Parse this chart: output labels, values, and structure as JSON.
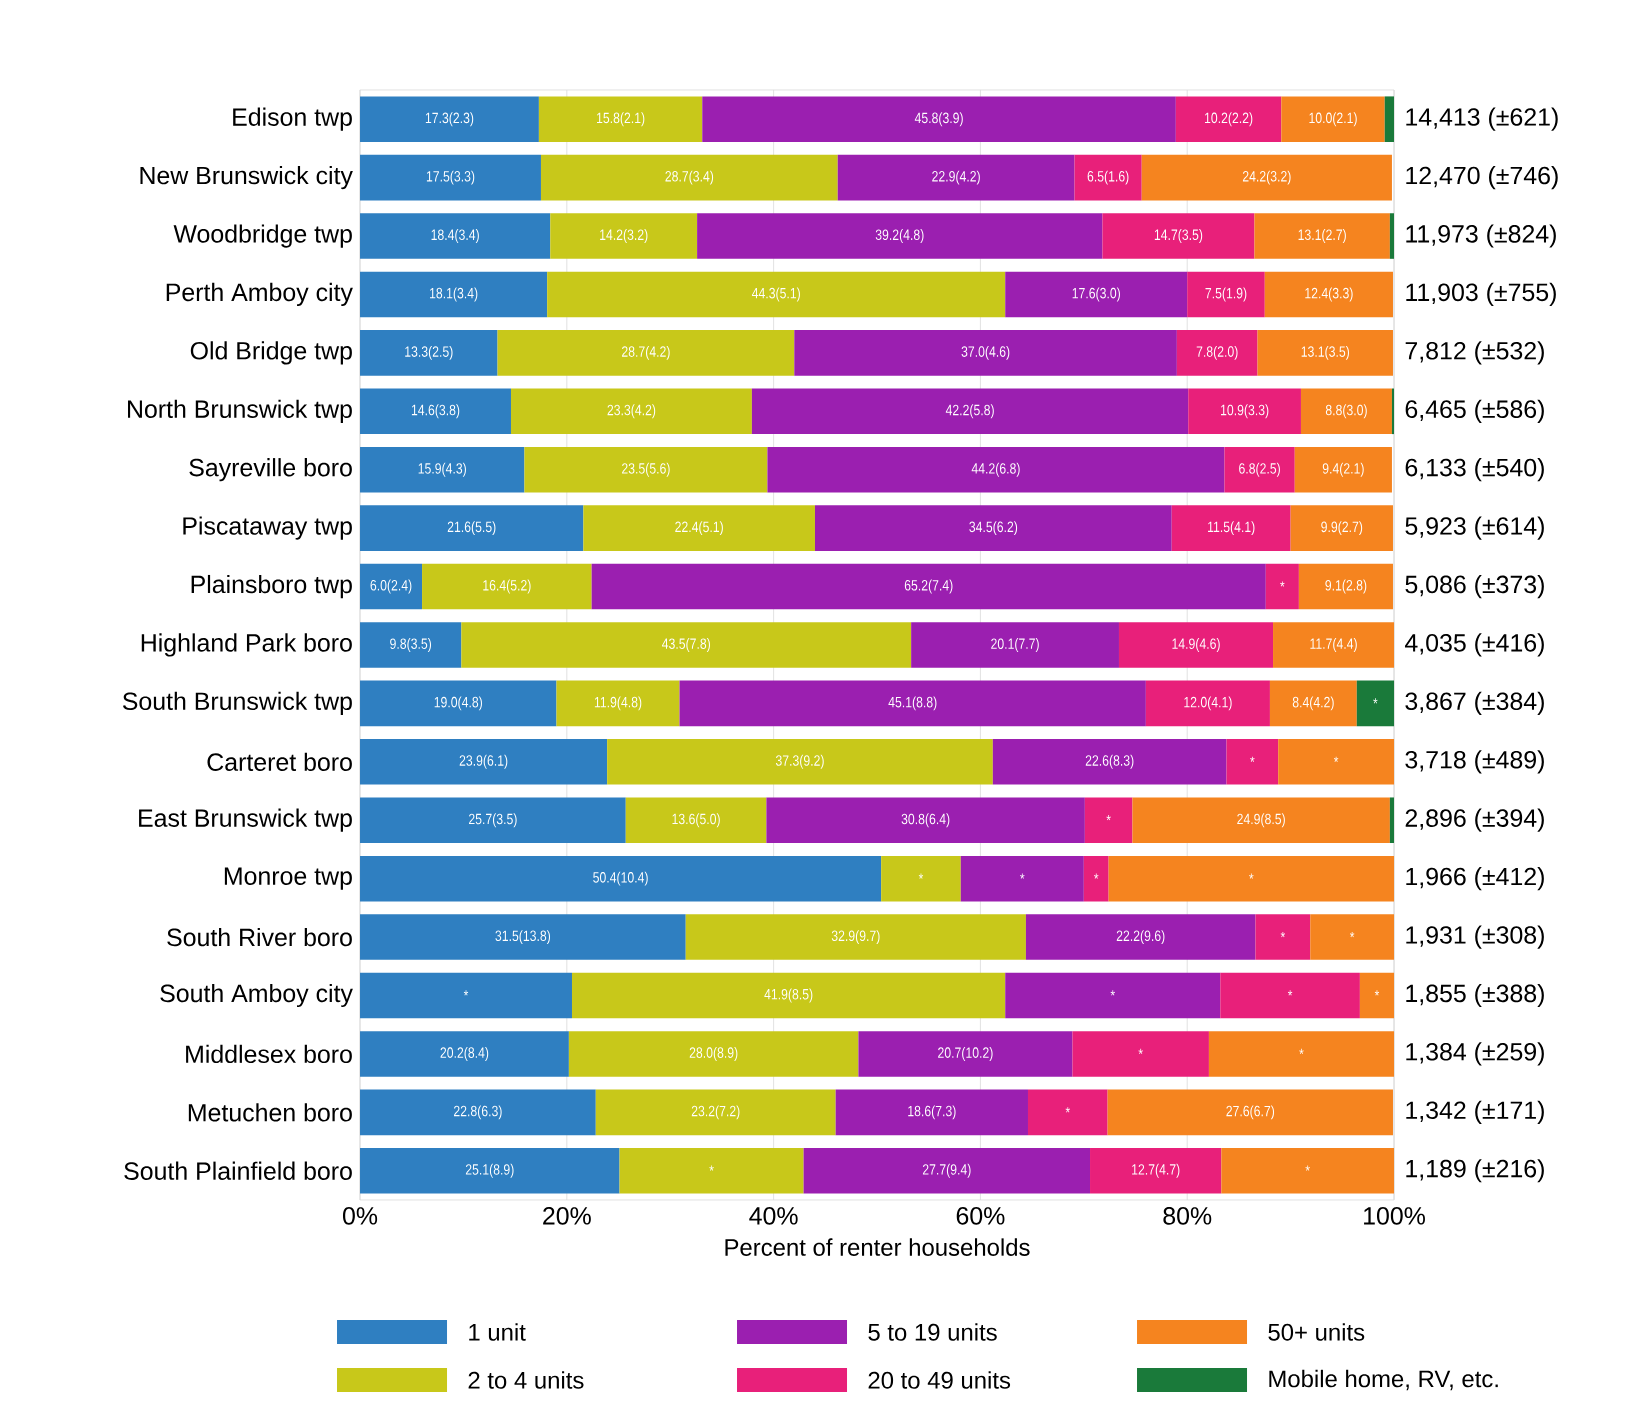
{
  "chart_data": {
    "type": "bar",
    "orientation": "horizontal",
    "stacked": true,
    "xlabel": "Percent of renter households",
    "categories": [
      "Edison twp",
      "New Brunswick city",
      "Woodbridge twp",
      "Perth Amboy city",
      "Old Bridge twp",
      "North Brunswick twp",
      "Sayreville boro",
      "Piscataway twp",
      "Plainsboro twp",
      "Highland Park boro",
      "South Brunswick twp",
      "Carteret boro",
      "East Brunswick twp",
      "Monroe twp",
      "South River boro",
      "South Amboy city",
      "Middlesex boro",
      "Metuchen boro",
      "South Plainfield boro"
    ],
    "series": [
      {
        "name": "1 unit",
        "color": "#2f7fc1",
        "values": [
          17.3,
          17.5,
          18.4,
          18.1,
          13.3,
          14.6,
          15.9,
          21.6,
          6.0,
          9.8,
          19.0,
          23.9,
          25.7,
          50.4,
          31.5,
          20.5,
          20.2,
          22.8,
          25.1
        ],
        "value_labels": [
          "17.3(2.3)",
          "17.5(3.3)",
          "18.4(3.4)",
          "18.1(3.4)",
          "13.3(2.5)",
          "14.6(3.8)",
          "15.9(4.3)",
          "21.6(5.5)",
          "6.0(2.4)",
          "9.8(3.5)",
          "19.0(4.8)",
          "23.9(6.1)",
          "25.7(3.5)",
          "50.4(10.4)",
          "31.5(13.8)",
          "*",
          "20.2(8.4)",
          "22.8(6.3)",
          "25.1(8.9)"
        ]
      },
      {
        "name": "2 to 4 units",
        "color": "#c8c81a",
        "values": [
          15.8,
          28.7,
          14.2,
          44.3,
          28.7,
          23.3,
          23.5,
          22.4,
          16.4,
          43.5,
          11.9,
          37.3,
          13.6,
          7.7,
          32.9,
          41.9,
          28.0,
          23.2,
          17.8
        ],
        "value_labels": [
          "15.8(2.1)",
          "28.7(3.4)",
          "14.2(3.2)",
          "44.3(5.1)",
          "28.7(4.2)",
          "23.3(4.2)",
          "23.5(5.6)",
          "22.4(5.1)",
          "16.4(5.2)",
          "43.5(7.8)",
          "11.9(4.8)",
          "37.3(9.2)",
          "13.6(5.0)",
          "*",
          "32.9(9.7)",
          "41.9(8.5)",
          "28.0(8.9)",
          "23.2(7.2)",
          "*"
        ]
      },
      {
        "name": "5 to 19 units",
        "color": "#9b1fb0",
        "values": [
          45.8,
          22.9,
          39.2,
          17.6,
          37.0,
          42.2,
          44.2,
          34.5,
          65.2,
          20.1,
          45.1,
          22.6,
          30.8,
          11.9,
          22.2,
          20.8,
          20.7,
          18.6,
          27.7
        ],
        "value_labels": [
          "45.8(3.9)",
          "22.9(4.2)",
          "39.2(4.8)",
          "17.6(3.0)",
          "37.0(4.6)",
          "42.2(5.8)",
          "44.2(6.8)",
          "34.5(6.2)",
          "65.2(7.4)",
          "20.1(7.7)",
          "45.1(8.8)",
          "22.6(8.3)",
          "30.8(6.4)",
          "*",
          "22.2(9.6)",
          "*",
          "20.7(10.2)",
          "18.6(7.3)",
          "27.7(9.4)"
        ]
      },
      {
        "name": "20 to 49 units",
        "color": "#e8207a",
        "values": [
          10.2,
          6.5,
          14.7,
          7.5,
          7.8,
          10.9,
          6.8,
          11.5,
          3.2,
          14.9,
          12.0,
          5.0,
          4.6,
          2.4,
          5.3,
          13.5,
          13.2,
          7.7,
          12.7
        ],
        "value_labels": [
          "10.2(2.2)",
          "6.5(1.6)",
          "14.7(3.5)",
          "7.5(1.9)",
          "7.8(2.0)",
          "10.9(3.3)",
          "6.8(2.5)",
          "11.5(4.1)",
          "*",
          "14.9(4.6)",
          "12.0(4.1)",
          "*",
          "*",
          "*",
          "*",
          "*",
          "*",
          "*",
          "12.7(4.7)"
        ]
      },
      {
        "name": "50+ units",
        "color": "#f5841f",
        "values": [
          10.0,
          24.2,
          13.1,
          12.4,
          13.1,
          8.8,
          9.4,
          9.9,
          9.1,
          11.7,
          8.4,
          11.2,
          24.9,
          27.6,
          8.1,
          3.3,
          17.9,
          27.6,
          16.7
        ],
        "value_labels": [
          "10.0(2.1)",
          "24.2(3.2)",
          "13.1(2.7)",
          "12.4(3.3)",
          "13.1(3.5)",
          "8.8(3.0)",
          "9.4(2.1)",
          "9.9(2.7)",
          "9.1(2.8)",
          "11.7(4.4)",
          "8.4(4.2)",
          "*",
          "24.9(8.5)",
          "*",
          "*",
          "*",
          "*",
          "27.6(6.7)",
          "*"
        ]
      },
      {
        "name": "Mobile home, RV, etc.",
        "color": "#1a7a3a",
        "values": [
          0.9,
          null,
          0.4,
          null,
          null,
          0.2,
          null,
          null,
          null,
          null,
          3.6,
          null,
          0.4,
          null,
          null,
          null,
          null,
          null,
          null
        ],
        "value_labels": [
          null,
          null,
          null,
          null,
          null,
          null,
          null,
          null,
          null,
          null,
          "*",
          null,
          null,
          null,
          null,
          null,
          null,
          null,
          null
        ]
      }
    ],
    "totals": [
      "14,413 (±621)",
      "12,470 (±746)",
      "11,973 (±824)",
      "11,903 (±755)",
      "7,812 (±532)",
      "6,465 (±586)",
      "6,133 (±540)",
      "5,923 (±614)",
      "5,086 (±373)",
      "4,035 (±416)",
      "3,867 (±384)",
      "3,718 (±489)",
      "2,896 (±394)",
      "1,966 (±412)",
      "1,931 (±308)",
      "1,855 (±388)",
      "1,384 (±259)",
      "1,342 (±171)",
      "1,189 (±216)"
    ],
    "xlim": [
      0,
      100
    ],
    "xticks": [
      {
        "value": 0,
        "label": "0%"
      },
      {
        "value": 20,
        "label": "20%"
      },
      {
        "value": 40,
        "label": "40%"
      },
      {
        "value": 60,
        "label": "60%"
      },
      {
        "value": 80,
        "label": "80%"
      },
      {
        "value": 100,
        "label": "100%"
      }
    ],
    "grid": "x",
    "legend": "bottom"
  }
}
